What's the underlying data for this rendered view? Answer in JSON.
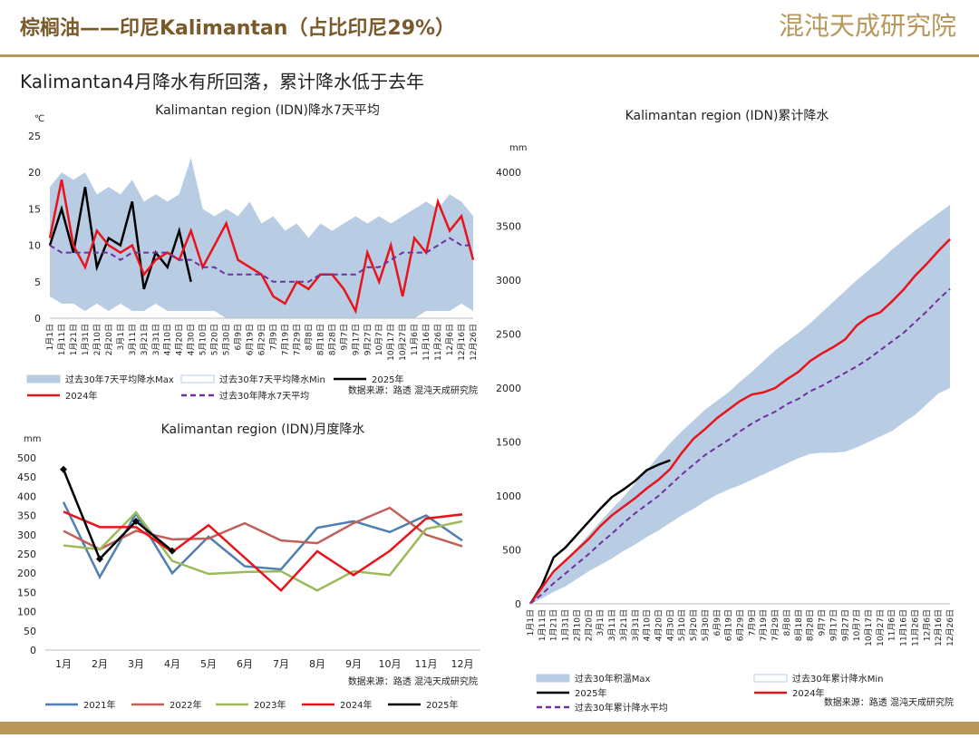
{
  "header": {
    "title": "棕榈油——印尼Kalimantan（占比印尼29%）",
    "logo": "混沌天成研究院"
  },
  "subtitle": "Kalimantan4月降水有所回落，累计降水低于去年",
  "chart_data": [
    {
      "type": "line",
      "title": "Kalimantan region (IDN)降水7天平均",
      "y_label": "℃",
      "source": "数据来源：路透  混沌天成研究院",
      "categories": [
        "1月1日",
        "1月11日",
        "1月21日",
        "1月31日",
        "2月10日",
        "2月20日",
        "3月1日",
        "3月11日",
        "3月21日",
        "3月31日",
        "4月10日",
        "4月20日",
        "4月30日",
        "5月10日",
        "5月20日",
        "5月30日",
        "6月9日",
        "6月19日",
        "6月29日",
        "7月9日",
        "7月19日",
        "7月29日",
        "8月8日",
        "8月18日",
        "8月28日",
        "9月7日",
        "9月17日",
        "9月27日",
        "10月7日",
        "10月17日",
        "10月27日",
        "11月6日",
        "11月16日",
        "11月26日",
        "12月6日",
        "12月16日",
        "12月26日"
      ],
      "ylim": [
        0,
        25
      ],
      "yticks": [
        0,
        5,
        10,
        15,
        20,
        25
      ],
      "grid": false,
      "series": [
        {
          "name": "过去30年7天平均降水Max",
          "kind": "area",
          "color": "#b8cce4",
          "values": [
            18,
            20,
            19,
            20,
            17,
            18,
            17,
            19,
            16,
            17,
            16,
            17,
            22,
            15,
            14,
            15,
            14,
            16,
            13,
            14,
            12,
            13,
            11,
            13,
            12,
            13,
            14,
            13,
            14,
            13,
            14,
            15,
            16,
            15,
            17,
            16,
            14
          ]
        },
        {
          "name": "过去30年7天平均降水Min",
          "kind": "area",
          "color": "#ffffff",
          "values": [
            3,
            2,
            2,
            1,
            2,
            1,
            2,
            1,
            1,
            2,
            1,
            1,
            1,
            1,
            1,
            0,
            0,
            0,
            0,
            0,
            0,
            0,
            0,
            0,
            0,
            0,
            0,
            0,
            0,
            0,
            0,
            0,
            1,
            1,
            1,
            2,
            1
          ]
        },
        {
          "name": "2025年",
          "kind": "line",
          "color": "#000000",
          "values": [
            10,
            15,
            9,
            18,
            7,
            11,
            10,
            16,
            4,
            9,
            7,
            12,
            5,
            null,
            null,
            null,
            null,
            null,
            null,
            null,
            null,
            null,
            null,
            null,
            null,
            null,
            null,
            null,
            null,
            null,
            null,
            null,
            null,
            null,
            null,
            null,
            null
          ]
        },
        {
          "name": "2024年",
          "kind": "line",
          "color": "#e8141b",
          "values": [
            11,
            19,
            10,
            7,
            12,
            10,
            9,
            10,
            6,
            8,
            9,
            8,
            12,
            7,
            10,
            13,
            8,
            7,
            6,
            3,
            2,
            5,
            4,
            6,
            6,
            4,
            1,
            9,
            5,
            10,
            3,
            11,
            9,
            16,
            12,
            14,
            8
          ]
        },
        {
          "name": "过去30年降水7天平均",
          "kind": "line",
          "dash": true,
          "color": "#7030a0",
          "values": [
            10,
            9,
            9,
            9,
            9,
            9,
            8,
            9,
            9,
            9,
            9,
            8,
            8,
            7,
            7,
            6,
            6,
            6,
            6,
            5,
            5,
            5,
            5,
            6,
            6,
            6,
            6,
            7,
            7,
            8,
            9,
            9,
            9,
            10,
            11,
            10,
            10
          ]
        }
      ]
    },
    {
      "type": "line",
      "title": "Kalimantan region (IDN)月度降水",
      "y_label": "mm",
      "source": "数据来源：路透  混沌天成研究院",
      "categories": [
        "1月",
        "2月",
        "3月",
        "4月",
        "5月",
        "6月",
        "7月",
        "8月",
        "9月",
        "10月",
        "11月",
        "12月"
      ],
      "ylim": [
        0,
        500
      ],
      "yticks": [
        0,
        50,
        100,
        150,
        200,
        250,
        300,
        350,
        400,
        450,
        500
      ],
      "grid": false,
      "series": [
        {
          "name": "2021年",
          "kind": "line",
          "color": "#4e7fb0",
          "values": [
            385,
            190,
            355,
            200,
            295,
            218,
            210,
            318,
            335,
            307,
            350,
            285
          ]
        },
        {
          "name": "2022年",
          "kind": "line",
          "color": "#c0605a",
          "values": [
            310,
            262,
            310,
            288,
            290,
            330,
            285,
            278,
            330,
            370,
            300,
            270
          ]
        },
        {
          "name": "2023年",
          "kind": "line",
          "color": "#9bbb59",
          "values": [
            272,
            262,
            358,
            232,
            198,
            203,
            205,
            155,
            205,
            195,
            315,
            335
          ]
        },
        {
          "name": "2024年",
          "kind": "line",
          "color": "#e8141b",
          "values": [
            360,
            320,
            320,
            255,
            325,
            240,
            155,
            257,
            195,
            258,
            342,
            353
          ]
        },
        {
          "name": "2025年",
          "kind": "line",
          "marker": "diamond",
          "color": "#000000",
          "values": [
            470,
            237,
            335,
            258,
            null,
            null,
            null,
            null,
            null,
            null,
            null,
            null
          ]
        }
      ]
    },
    {
      "type": "line",
      "title": "Kalimantan region (IDN)累计降水",
      "y_label": "mm",
      "source": "数据来源：路透  混沌天成研究院",
      "categories": [
        "1月1日",
        "1月11日",
        "1月21日",
        "1月31日",
        "2月10日",
        "2月20日",
        "3月1日",
        "3月11日",
        "3月21日",
        "3月31日",
        "4月10日",
        "4月20日",
        "4月30日",
        "5月10日",
        "5月20日",
        "5月30日",
        "6月9日",
        "6月19日",
        "6月29日",
        "7月9日",
        "7月19日",
        "7月29日",
        "8月8日",
        "8月18日",
        "8月28日",
        "9月7日",
        "9月17日",
        "9月27日",
        "10月7日",
        "10月17日",
        "10月27日",
        "11月6日",
        "11月16日",
        "11月26日",
        "12月6日",
        "12月16日",
        "12月26日"
      ],
      "ylim": [
        0,
        4000
      ],
      "yticks": [
        0,
        500,
        1000,
        1500,
        2000,
        2500,
        3000,
        3500,
        4000
      ],
      "grid": false,
      "series": [
        {
          "name": "过去30年积温Max",
          "kind": "area",
          "color": "#b8cce4",
          "values": [
            0,
            130,
            280,
            410,
            520,
            640,
            760,
            880,
            990,
            1120,
            1240,
            1370,
            1490,
            1600,
            1700,
            1800,
            1880,
            1960,
            2060,
            2150,
            2250,
            2350,
            2430,
            2510,
            2600,
            2700,
            2800,
            2900,
            3000,
            3090,
            3180,
            3280,
            3370,
            3460,
            3540,
            3620,
            3700
          ]
        },
        {
          "name": "过去30年累计降水Min",
          "kind": "area",
          "color": "#ffffff",
          "values": [
            0,
            50,
            110,
            160,
            230,
            300,
            360,
            420,
            490,
            550,
            620,
            680,
            750,
            820,
            880,
            950,
            1010,
            1060,
            1100,
            1150,
            1200,
            1250,
            1300,
            1350,
            1390,
            1400,
            1400,
            1410,
            1450,
            1500,
            1550,
            1600,
            1680,
            1750,
            1850,
            1950,
            2000
          ]
        },
        {
          "name": "2025年",
          "kind": "line",
          "color": "#000000",
          "values": [
            0,
            170,
            430,
            520,
            640,
            760,
            880,
            990,
            1060,
            1140,
            1240,
            1290,
            1330,
            null,
            null,
            null,
            null,
            null,
            null,
            null,
            null,
            null,
            null,
            null,
            null,
            null,
            null,
            null,
            null,
            null,
            null,
            null,
            null,
            null,
            null,
            null,
            null
          ]
        },
        {
          "name": "2024年",
          "kind": "line",
          "color": "#e8141b",
          "values": [
            0,
            150,
            300,
            400,
            500,
            600,
            720,
            820,
            900,
            980,
            1070,
            1150,
            1250,
            1400,
            1530,
            1620,
            1720,
            1800,
            1880,
            1940,
            1960,
            2000,
            2080,
            2150,
            2250,
            2320,
            2380,
            2450,
            2580,
            2660,
            2700,
            2800,
            2910,
            3040,
            3150,
            3270,
            3380
          ]
        },
        {
          "name": "过去30年累计降水平均",
          "kind": "line",
          "dash": true,
          "color": "#7030a0",
          "values": [
            0,
            90,
            190,
            280,
            370,
            460,
            560,
            650,
            750,
            840,
            920,
            1000,
            1100,
            1200,
            1290,
            1380,
            1450,
            1520,
            1600,
            1670,
            1730,
            1780,
            1850,
            1900,
            1970,
            2020,
            2080,
            2140,
            2200,
            2270,
            2350,
            2430,
            2510,
            2610,
            2710,
            2820,
            2920
          ]
        }
      ]
    }
  ]
}
